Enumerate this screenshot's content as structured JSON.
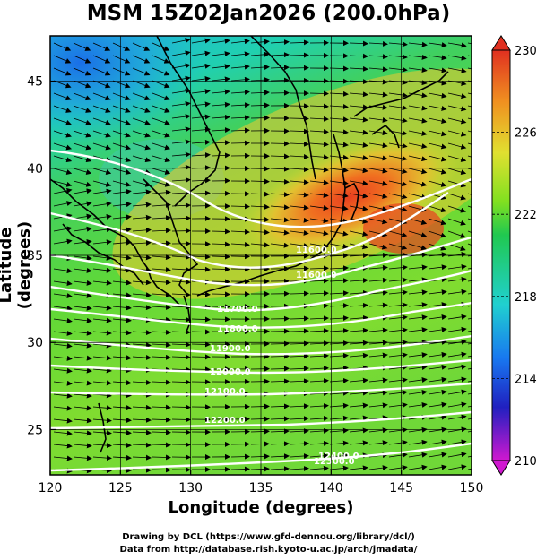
{
  "title": "MSM 15Z02Jan2026 (200.0hPa)",
  "axes": {
    "xlabel": "Longitude (degrees)",
    "ylabel": "Latitude  (degrees)",
    "xticks": [
      "120",
      "125",
      "130",
      "135",
      "140",
      "145",
      "150"
    ],
    "yticks": [
      "45",
      "40",
      "35",
      "30",
      "25"
    ],
    "xrange": [
      120,
      150
    ],
    "yrange": [
      22.4,
      47.6
    ]
  },
  "colorbar": {
    "labels": [
      "230",
      "226",
      "222",
      "218",
      "214",
      "210"
    ],
    "range": [
      210,
      230
    ],
    "colors": [
      "#d018d0",
      "#2020c0",
      "#1878f0",
      "#20d0d0",
      "#20c850",
      "#80e020",
      "#e0e030",
      "#f09020",
      "#e03020"
    ]
  },
  "contours": {
    "labels": [
      "11600.0",
      "11600.0",
      "11700.0",
      "11800.0",
      "11900.0",
      "12000.0",
      "12100.0",
      "12200.0",
      "12300.0",
      "12400.0"
    ]
  },
  "credits": {
    "line1": "Drawing by DCL (https://www.gfd-dennou.org/library/dcl/)",
    "line2": "Data from http://database.rish.kyoto-u.ac.jp/arch/jmadata/"
  }
}
